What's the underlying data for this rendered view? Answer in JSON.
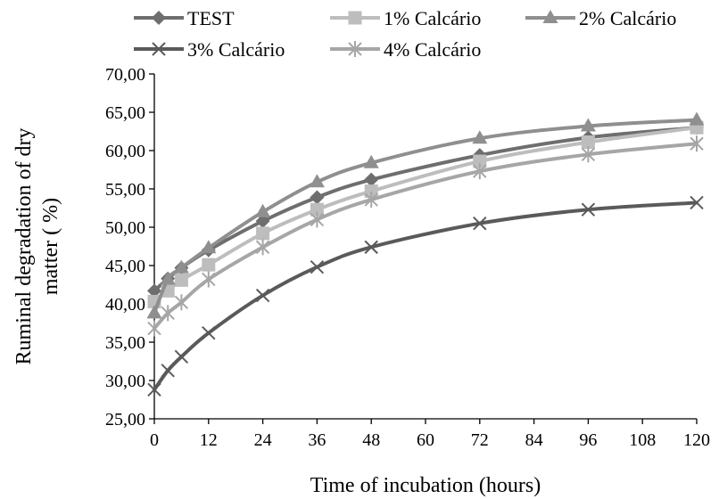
{
  "chart_data": {
    "type": "line",
    "title": "",
    "xlabel": "Time of incubation (hours)",
    "ylabel_lines": [
      "Ruminal degradation of dry",
      "matter ( %)"
    ],
    "xlim": [
      0,
      120
    ],
    "ylim": [
      25,
      70
    ],
    "x_ticks": [
      "0",
      "12",
      "24",
      "36",
      "48",
      "60",
      "72",
      "84",
      "96",
      "108",
      "120"
    ],
    "y_ticks": [
      "25,00",
      "30,00",
      "35,00",
      "40,00",
      "45,00",
      "50,00",
      "55,00",
      "60,00",
      "65,00",
      "70,00"
    ],
    "x": [
      0,
      3,
      6,
      12,
      24,
      36,
      48,
      72,
      96,
      120
    ],
    "grid": false,
    "legend_position": "top",
    "series": [
      {
        "name": "TEST",
        "marker": "diamond",
        "color": "#6e6e6e",
        "values": [
          41.7,
          43.3,
          44.7,
          47.0,
          50.8,
          53.9,
          56.2,
          59.4,
          61.7,
          63.0
        ]
      },
      {
        "name": "1% Calcário",
        "marker": "square",
        "color": "#bdbdbd",
        "values": [
          40.3,
          41.7,
          43.1,
          45.1,
          49.2,
          52.3,
          54.7,
          58.6,
          61.1,
          63.0
        ]
      },
      {
        "name": "2% Calcário",
        "marker": "triangle",
        "color": "#8f8f8f",
        "values": [
          38.8,
          43.2,
          44.7,
          47.3,
          52.0,
          55.9,
          58.4,
          61.6,
          63.2,
          64.0
        ]
      },
      {
        "name": "3% Calcário",
        "marker": "x",
        "color": "#5a5a5a",
        "values": [
          28.8,
          31.3,
          33.1,
          36.2,
          41.1,
          44.8,
          47.4,
          50.5,
          52.3,
          53.2
        ]
      },
      {
        "name": "4% Calcário",
        "marker": "star",
        "color": "#a6a6a6",
        "values": [
          36.8,
          38.8,
          40.2,
          43.2,
          47.4,
          51.0,
          53.6,
          57.3,
          59.5,
          60.9
        ]
      }
    ]
  }
}
